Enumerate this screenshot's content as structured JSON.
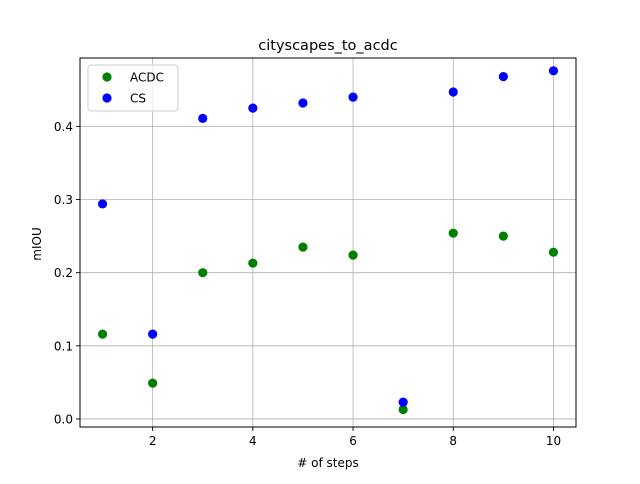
{
  "chart_data": {
    "type": "scatter",
    "title": "cityscapes_to_acdc",
    "xlabel": "# of steps",
    "ylabel": "mIOU",
    "xlim": [
      0.55,
      10.45
    ],
    "ylim": [
      -0.011,
      0.4935
    ],
    "xticks": [
      2,
      4,
      6,
      8,
      10
    ],
    "xtick_labels": [
      "2",
      "4",
      "6",
      "8",
      "10"
    ],
    "yticks": [
      0.0,
      0.1,
      0.2,
      0.3,
      0.4
    ],
    "ytick_labels": [
      "0.0",
      "0.1",
      "0.2",
      "0.3",
      "0.4"
    ],
    "grid": true,
    "legend_position": "top-left",
    "series": [
      {
        "name": "ACDC",
        "color": "#008000",
        "x": [
          1,
          2,
          3,
          4,
          5,
          6,
          7,
          8,
          9,
          10
        ],
        "y": [
          0.116,
          0.049,
          0.2,
          0.213,
          0.235,
          0.224,
          0.013,
          0.254,
          0.25,
          0.228
        ]
      },
      {
        "name": "CS",
        "color": "#0000ff",
        "x": [
          1,
          2,
          3,
          4,
          5,
          6,
          7,
          8,
          9,
          10
        ],
        "y": [
          0.294,
          0.116,
          0.411,
          0.425,
          0.432,
          0.44,
          0.023,
          0.447,
          0.468,
          0.476
        ]
      }
    ]
  }
}
